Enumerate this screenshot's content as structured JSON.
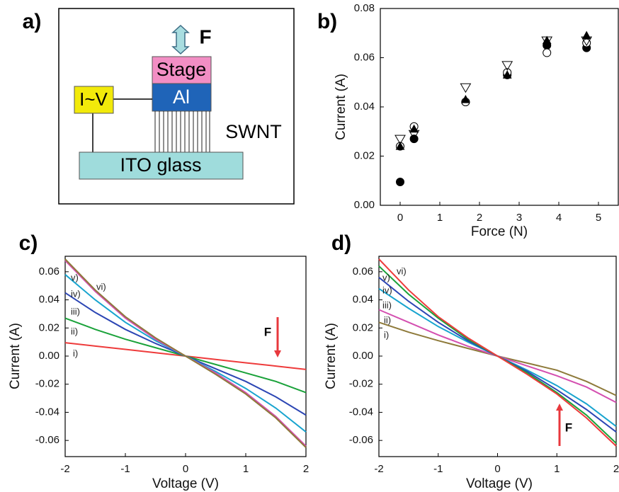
{
  "diagram": {
    "title": "a)",
    "force": "F",
    "stage": "Stage",
    "electrode": "Al",
    "source": "I~V",
    "nanotubes": "SWNT",
    "substrate": "ITO glass"
  },
  "chart_data": [
    {
      "type": "scatter",
      "title": "b)",
      "x_label": "Force (N)",
      "y_label": "Current (A)",
      "x": [
        0,
        0.35,
        1.65,
        2.7,
        3.7,
        4.7
      ],
      "series": [
        {
          "marker": "filled-circle",
          "color": "#000000",
          "values": [
            0.0095,
            0.027,
            0.042,
            0.053,
            0.065,
            0.064
          ]
        },
        {
          "marker": "open-circle",
          "color": "#000000",
          "values": [
            0.024,
            0.032,
            0.042,
            0.054,
            0.062,
            0.066
          ]
        },
        {
          "marker": "filled-triangle",
          "color": "#000000",
          "values": [
            0.024,
            0.031,
            0.043,
            0.053,
            0.067,
            0.069
          ]
        },
        {
          "marker": "open-inverted-triangle",
          "color": "#000000",
          "values": [
            0.027,
            0.029,
            0.048,
            0.057,
            0.067,
            0.067
          ]
        }
      ],
      "xlim": [
        -0.5,
        5.5
      ],
      "xticks": [
        0,
        1,
        2,
        3,
        4,
        5
      ],
      "ylim": [
        0,
        0.08
      ],
      "yticks": [
        {
          "value": 0,
          "label": "0.00"
        },
        0.02,
        0.04,
        0.06,
        0.08
      ]
    },
    {
      "type": "line",
      "title": "c)",
      "x_label": "Voltage (V)",
      "y_label": "Current (A)",
      "annotation": "F",
      "annotation_color": "#e8383d",
      "x": [
        -2,
        -1.5,
        -1,
        -0.5,
        0,
        0.5,
        1,
        1.5,
        2
      ],
      "series": [
        {
          "name": "i)",
          "color": "#ee3b3b",
          "values": [
            0.0095,
            0.0071,
            0.0048,
            0.0024,
            0,
            -0.0024,
            -0.0048,
            -0.0071,
            -0.0095
          ]
        },
        {
          "name": "ii)",
          "color": "#1aa23a",
          "values": [
            0.027,
            0.019,
            0.012,
            0.006,
            0,
            -0.006,
            -0.012,
            -0.018,
            -0.026
          ]
        },
        {
          "name": "iii)",
          "color": "#2c46b4",
          "values": [
            0.045,
            0.031,
            0.019,
            0.009,
            0,
            -0.009,
            -0.018,
            -0.029,
            -0.042
          ]
        },
        {
          "name": "iv)",
          "color": "#18a4cf",
          "values": [
            0.058,
            0.04,
            0.024,
            0.011,
            0,
            -0.011,
            -0.023,
            -0.037,
            -0.054
          ]
        },
        {
          "name": "v)",
          "color": "#d44fb0",
          "values": [
            0.068,
            0.046,
            0.027,
            0.012,
            0,
            -0.012,
            -0.026,
            -0.043,
            -0.064
          ]
        },
        {
          "name": "vi)",
          "color": "#8e7a3a",
          "values": [
            0.069,
            0.047,
            0.028,
            0.013,
            0,
            -0.013,
            -0.027,
            -0.044,
            -0.065
          ]
        }
      ],
      "xlim": [
        -2,
        2
      ],
      "xticks": [
        -2,
        -1,
        0,
        1,
        2
      ],
      "ylim": [
        -0.0715,
        0.071
      ],
      "yticks": [
        0.06,
        0.04,
        0.02,
        {
          "value": 0,
          "label": "0.00"
        },
        -0.02,
        -0.04,
        -0.06
      ]
    },
    {
      "type": "line",
      "title": "d)",
      "x_label": "Voltage (V)",
      "y_label": "Current (A)",
      "annotation": "F",
      "annotation_color": "#e8383d",
      "x": [
        -2,
        -1.5,
        -1,
        -0.5,
        0,
        0.5,
        1,
        1.5,
        2
      ],
      "series": [
        {
          "name": "i)",
          "color": "#8e7a3a",
          "values": [
            0.024,
            0.017,
            0.011,
            0.0055,
            0,
            -0.005,
            -0.01,
            -0.018,
            -0.028
          ]
        },
        {
          "name": "ii)",
          "color": "#d44fb0",
          "values": [
            0.033,
            0.024,
            0.015,
            0.007,
            0,
            -0.007,
            -0.014,
            -0.022,
            -0.033
          ]
        },
        {
          "name": "iii)",
          "color": "#18a4cf",
          "values": [
            0.048,
            0.034,
            0.021,
            0.01,
            0,
            -0.01,
            -0.021,
            -0.034,
            -0.05
          ]
        },
        {
          "name": "iv)",
          "color": "#2c46b4",
          "values": [
            0.056,
            0.039,
            0.024,
            0.011,
            0,
            -0.011,
            -0.024,
            -0.038,
            -0.054
          ]
        },
        {
          "name": "v)",
          "color": "#1aa23a",
          "values": [
            0.064,
            0.044,
            0.027,
            0.012,
            0,
            -0.012,
            -0.026,
            -0.042,
            -0.062
          ]
        },
        {
          "name": "vi)",
          "color": "#ee3b3b",
          "values": [
            0.069,
            0.047,
            0.028,
            0.013,
            0,
            -0.013,
            -0.027,
            -0.044,
            -0.064
          ]
        }
      ],
      "xlim": [
        -2,
        2
      ],
      "xticks": [
        -2,
        -1,
        0,
        1,
        2
      ],
      "ylim": [
        -0.0715,
        0.071
      ],
      "yticks": [
        0.06,
        0.04,
        0.02,
        {
          "value": 0,
          "label": "0.00"
        },
        -0.02,
        -0.04,
        -0.06
      ]
    }
  ]
}
